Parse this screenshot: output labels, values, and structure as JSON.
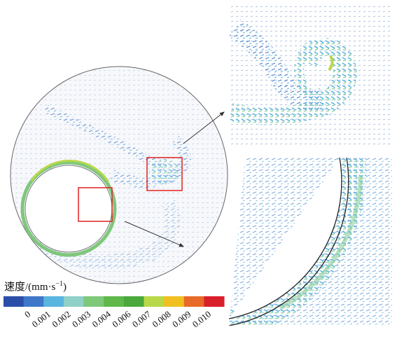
{
  "colorbar": {
    "title": {
      "text": "速度/(mm·s",
      "sup": "−1",
      "close": ")"
    },
    "colors": [
      "#2b4ea8",
      "#3f78c8",
      "#5ab4e0",
      "#8fd0c8",
      "#7ec87a",
      "#5fb84a",
      "#4aa83c",
      "#b8d84a",
      "#f0c020",
      "#e86a28",
      "#d8202a"
    ],
    "ticks": [
      "0",
      "0.001",
      "0.002",
      "0.003",
      "0.004",
      "0.006",
      "0.007",
      "0.008",
      "0.009",
      "0.010"
    ]
  }
}
